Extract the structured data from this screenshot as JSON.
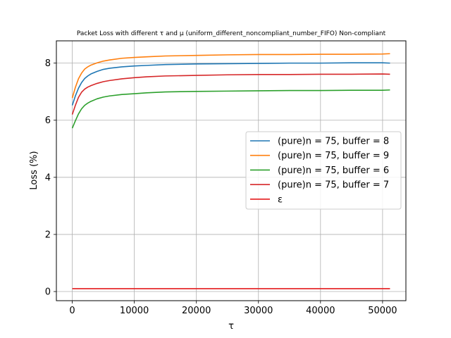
{
  "chart_data": {
    "type": "line",
    "title": "Packet Loss with different τ and μ (uniform_different_noncompliant_number_FIFO) Non-compliant",
    "xlabel": "τ",
    "ylabel": "Loss (%)",
    "xlim": [
      -2560,
      53760
    ],
    "ylim": [
      -0.32,
      8.78
    ],
    "xticks": [
      0,
      10000,
      20000,
      30000,
      40000,
      50000
    ],
    "xtick_labels": [
      "0",
      "10000",
      "20000",
      "30000",
      "40000",
      "50000"
    ],
    "yticks": [
      0,
      2,
      4,
      6,
      8
    ],
    "ytick_labels": [
      "0",
      "2",
      "4",
      "6",
      "8"
    ],
    "grid": true,
    "legend_position": "center-right",
    "series": [
      {
        "name": "(pure)n = 75, buffer = 8",
        "color": "#1f77b4",
        "x": [
          0,
          500,
          1000,
          1500,
          2000,
          2500,
          3000,
          4000,
          5000,
          6000,
          8000,
          10000,
          12000,
          15000,
          20000,
          25000,
          30000,
          35000,
          40000,
          45000,
          50000,
          51200
        ],
        "y": [
          6.52,
          6.85,
          7.12,
          7.32,
          7.46,
          7.55,
          7.62,
          7.71,
          7.78,
          7.82,
          7.87,
          7.9,
          7.92,
          7.95,
          7.97,
          7.98,
          7.99,
          8.0,
          8.0,
          8.01,
          8.01,
          8.0
        ]
      },
      {
        "name": "(pure)n = 75, buffer = 9",
        "color": "#ff7f0e",
        "x": [
          0,
          500,
          1000,
          1500,
          2000,
          2500,
          3000,
          4000,
          5000,
          6000,
          8000,
          10000,
          12000,
          15000,
          20000,
          25000,
          30000,
          35000,
          40000,
          45000,
          50000,
          51200
        ],
        "y": [
          6.78,
          7.15,
          7.45,
          7.65,
          7.79,
          7.87,
          7.93,
          8.01,
          8.07,
          8.11,
          8.17,
          8.2,
          8.22,
          8.25,
          8.27,
          8.29,
          8.3,
          8.3,
          8.31,
          8.31,
          8.32,
          8.33
        ]
      },
      {
        "name": "(pure)n = 75, buffer = 6",
        "color": "#2ca02c",
        "x": [
          0,
          500,
          1000,
          1500,
          2000,
          2500,
          3000,
          4000,
          5000,
          6000,
          8000,
          10000,
          12000,
          15000,
          20000,
          25000,
          30000,
          35000,
          40000,
          45000,
          50000,
          51200
        ],
        "y": [
          5.72,
          5.98,
          6.22,
          6.4,
          6.52,
          6.6,
          6.66,
          6.75,
          6.81,
          6.85,
          6.9,
          6.93,
          6.96,
          6.99,
          7.01,
          7.02,
          7.03,
          7.04,
          7.04,
          7.05,
          7.05,
          7.06
        ]
      },
      {
        "name": "(pure)n = 75, buffer = 7",
        "color": "#d62728",
        "x": [
          0,
          500,
          1000,
          1500,
          2000,
          2500,
          3000,
          4000,
          5000,
          6000,
          8000,
          10000,
          12000,
          15000,
          20000,
          25000,
          30000,
          35000,
          40000,
          45000,
          50000,
          51200
        ],
        "y": [
          6.2,
          6.52,
          6.8,
          6.98,
          7.09,
          7.16,
          7.21,
          7.29,
          7.35,
          7.39,
          7.45,
          7.49,
          7.52,
          7.55,
          7.57,
          7.59,
          7.6,
          7.6,
          7.61,
          7.61,
          7.62,
          7.61
        ]
      },
      {
        "name": "ε",
        "color": "#e41a1c",
        "x": [
          0,
          51200
        ],
        "y": [
          0.1,
          0.1
        ]
      }
    ]
  }
}
